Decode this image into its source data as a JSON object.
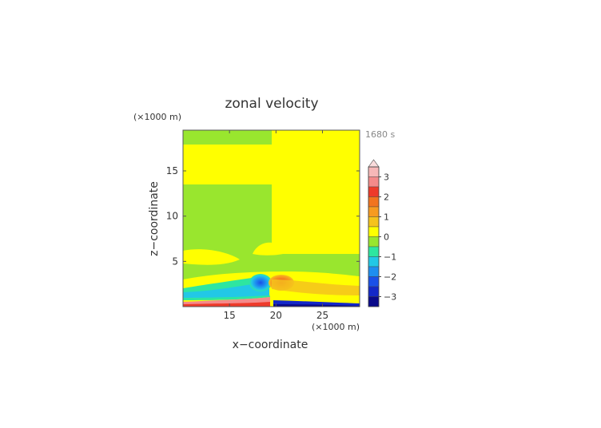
{
  "chart_data": {
    "type": "heatmap",
    "title": "zonal velocity",
    "xlabel": "x−coordinate",
    "ylabel": "z−coordinate",
    "x_unit": "(×1000 m)",
    "y_unit": "(×1000 m)",
    "time_label": "1680 s",
    "xlim": [
      10,
      29
    ],
    "ylim": [
      0,
      19.5
    ],
    "x_ticks": [
      15,
      20,
      25
    ],
    "y_ticks": [
      5,
      10,
      15
    ],
    "colorbar": {
      "ticks": [
        3,
        2,
        1,
        0,
        -1,
        -2,
        -3
      ],
      "tick_labels": [
        "3",
        "2",
        "1",
        "0",
        "−1",
        "−2",
        "−3"
      ],
      "levels": [
        3.5,
        3.0,
        2.5,
        2.0,
        1.5,
        1.0,
        0.5,
        0.0,
        -0.5,
        -1.0,
        -1.5,
        -2.0,
        -2.5,
        -3.0,
        -3.5
      ],
      "colors": [
        "#f7b8b8",
        "#f48a8a",
        "#ee3a2a",
        "#f2741f",
        "#f79b20",
        "#f5c31c",
        "#ffff00",
        "#99e62e",
        "#2ee6a0",
        "#22c8e6",
        "#1e8ef0",
        "#1a50e8",
        "#1428c8",
        "#0a0a8a"
      ],
      "extend": "max",
      "over_color": "#fadcdc"
    },
    "regions": [
      {
        "label": "upper-left",
        "x": [
          10,
          20
        ],
        "z": [
          17.8,
          19.5
        ],
        "value": 0.1
      },
      {
        "label": "upper-right",
        "x": [
          20,
          29
        ],
        "z": [
          17.8,
          19.5
        ],
        "value": 0.3
      },
      {
        "label": "left-band",
        "x": [
          10,
          20
        ],
        "z": [
          14.3,
          17.8
        ],
        "value": 0.3
      },
      {
        "label": "right-band",
        "x": [
          20,
          29
        ],
        "z": [
          14.3,
          17.8
        ],
        "value": 0.3
      },
      {
        "label": "left-middle",
        "x": [
          10,
          20
        ],
        "z": [
          6.2,
          14.3
        ],
        "value": -0.2
      },
      {
        "label": "right-middle",
        "x": [
          20,
          29
        ],
        "z": [
          6.2,
          14.3
        ],
        "value": 0.2
      },
      {
        "label": "low-level",
        "x": [
          10,
          29
        ],
        "z": [
          1.0,
          3.0
        ],
        "value": -1.2
      },
      {
        "label": "surface",
        "x": [
          10,
          29
        ],
        "z": [
          0,
          0.5
        ],
        "value": 2.5
      }
    ]
  }
}
